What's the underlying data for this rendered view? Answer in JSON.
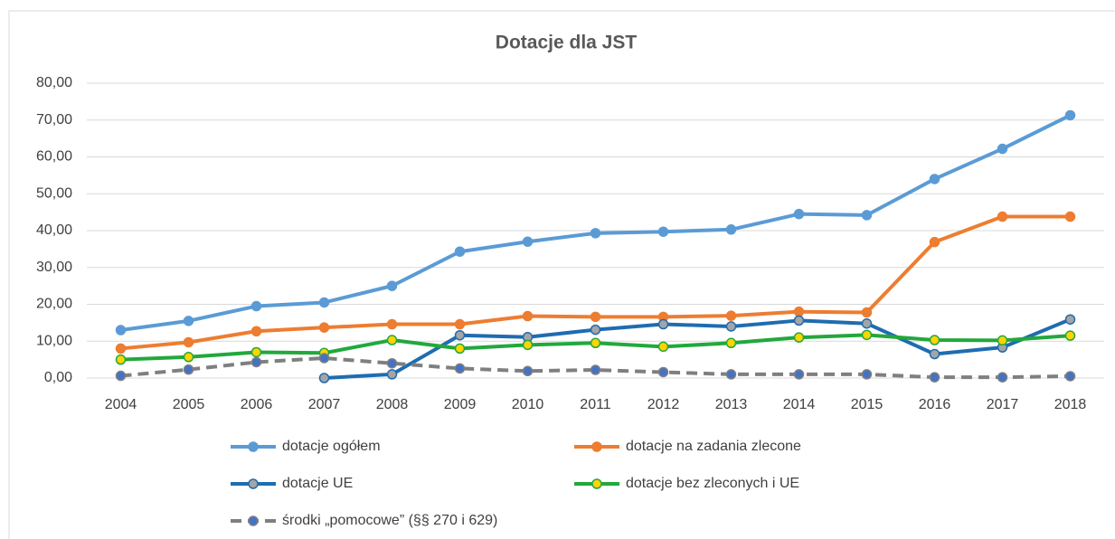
{
  "chart_data": {
    "type": "line",
    "title": "Dotacje dla JST",
    "categories": [
      "2004",
      "2005",
      "2006",
      "2007",
      "2008",
      "2009",
      "2010",
      "2011",
      "2012",
      "2013",
      "2014",
      "2015",
      "2016",
      "2017",
      "2018"
    ],
    "ylim": [
      0,
      80
    ],
    "yticks": [
      {
        "value": 0,
        "label": "0,00"
      },
      {
        "value": 10,
        "label": "10,00"
      },
      {
        "value": 20,
        "label": "20,00"
      },
      {
        "value": 30,
        "label": "30,00"
      },
      {
        "value": 40,
        "label": "40,00"
      },
      {
        "value": 50,
        "label": "50,00"
      },
      {
        "value": 60,
        "label": "60,00"
      },
      {
        "value": 70,
        "label": "70,00"
      },
      {
        "value": 80,
        "label": "80,00"
      }
    ],
    "grid": true,
    "legend": "bottom",
    "series": [
      {
        "name": "dotacje ogółem",
        "color": "#5b9bd5",
        "marker_color": "#5b9bd5",
        "values": [
          13,
          15.5,
          19.5,
          20.5,
          25,
          34.3,
          37,
          39.3,
          39.7,
          40.3,
          44.5,
          44.2,
          54,
          62.2,
          71.3
        ]
      },
      {
        "name": "dotacje na zadania zlecone",
        "color": "#ed7d31",
        "marker_color": "#ed7d31",
        "values": [
          8,
          9.7,
          12.7,
          13.7,
          14.6,
          14.6,
          16.8,
          16.6,
          16.6,
          16.9,
          18,
          17.8,
          36.9,
          43.8,
          43.8
        ]
      },
      {
        "name": "dotacje UE",
        "color": "#1f6cb0",
        "marker_color": "#a5a5a5",
        "values": [
          null,
          null,
          null,
          0,
          1,
          11.6,
          11.1,
          13.1,
          14.6,
          14,
          15.6,
          14.8,
          6.5,
          8.3,
          15.9
        ]
      },
      {
        "name": "dotacje bez zleconych i UE",
        "color": "#22a83c",
        "marker_color": "#ffd400",
        "values": [
          5,
          5.7,
          7,
          6.8,
          10.3,
          8,
          9,
          9.5,
          8.5,
          9.5,
          11,
          11.7,
          10.3,
          10.2,
          11.5
        ]
      },
      {
        "name": "środki „pomocowe” (§§ 270 i 629)",
        "color": "#7f7f7f",
        "marker_color": "#4472c4",
        "dashed": true,
        "values": [
          0.6,
          2.3,
          4.3,
          5.4,
          4,
          2.6,
          1.9,
          2.2,
          1.6,
          1,
          1,
          1,
          0.2,
          0.2,
          0.5
        ]
      }
    ]
  }
}
